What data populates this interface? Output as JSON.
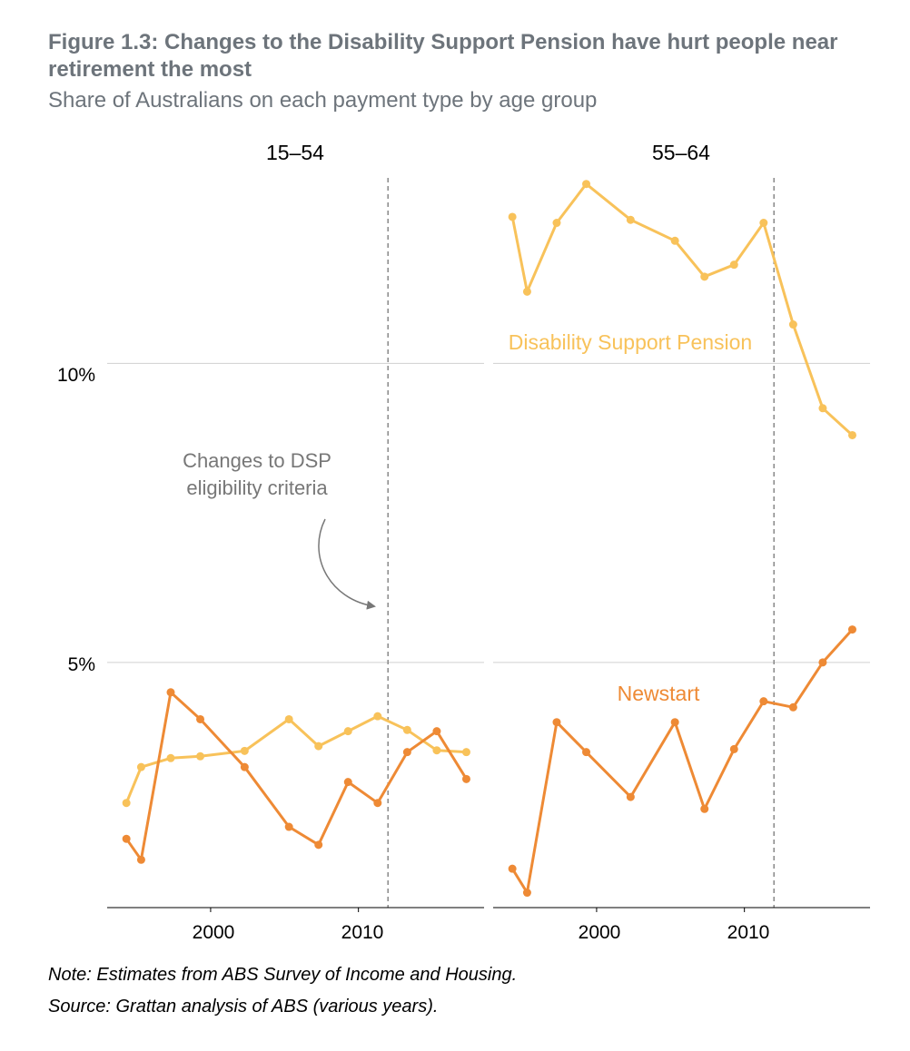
{
  "figure": {
    "title": "Figure 1.3: Changes to the Disability Support Pension have hurt people near retirement the most",
    "subtitle": "Share of Australians on each payment type by age group",
    "note": "Note: Estimates from ABS Survey of Income and Housing.",
    "source": "Source: Grattan analysis of ABS (various years)."
  },
  "colors": {
    "dsp": "#f8c25a",
    "newstart": "#ee8a35",
    "grid": "#d0d0d0",
    "axis": "#000000",
    "vline": "#888888",
    "annotation": "#777777"
  },
  "chart_data": {
    "type": "line",
    "facets": [
      {
        "title": "15–54",
        "series": [
          {
            "name": "Disability Support Pension",
            "x": [
              1994.3,
              1995.3,
              1997.3,
              1999.3,
              2002.3,
              2005.3,
              2007.3,
              2009.3,
              2011.3,
              2013.3,
              2015.3,
              2017.3
            ],
            "values": [
              2.65,
              3.25,
              3.4,
              3.43,
              3.52,
              4.05,
              3.6,
              3.85,
              4.1,
              3.87,
              3.53,
              3.5
            ]
          },
          {
            "name": "Newstart",
            "x": [
              1994.3,
              1995.3,
              1997.3,
              1999.3,
              2002.3,
              2005.3,
              2007.3,
              2009.3,
              2011.3,
              2013.3,
              2015.3,
              2017.3
            ],
            "values": [
              2.05,
              1.7,
              4.5,
              4.05,
              3.25,
              2.25,
              1.95,
              3.0,
              2.65,
              3.5,
              3.85,
              3.05
            ]
          }
        ],
        "vline_year": 2012,
        "annotation": [
          "Changes to DSP",
          "eligibility criteria"
        ]
      },
      {
        "title": "55–64",
        "series": [
          {
            "name": "Disability Support Pension",
            "x": [
              1994.3,
              1995.3,
              1997.3,
              1999.3,
              2002.3,
              2005.3,
              2007.3,
              2009.3,
              2011.3,
              2013.3,
              2015.3,
              2017.3
            ],
            "values": [
              12.45,
              11.2,
              12.35,
              13.0,
              12.4,
              12.05,
              11.45,
              11.65,
              12.35,
              10.65,
              9.25,
              8.8
            ]
          },
          {
            "name": "Newstart",
            "x": [
              1994.3,
              1995.3,
              1997.3,
              1999.3,
              2002.3,
              2005.3,
              2007.3,
              2009.3,
              2011.3,
              2013.3,
              2015.3,
              2017.3
            ],
            "values": [
              1.55,
              1.15,
              4.0,
              3.5,
              2.75,
              4.0,
              2.55,
              3.55,
              4.35,
              4.25,
              5.0,
              5.55
            ]
          }
        ],
        "vline_year": 2012,
        "series_labels": [
          "Disability Support Pension",
          "Newstart"
        ]
      }
    ],
    "x_ticks": [
      2000,
      2010
    ],
    "x_tick_labels": [
      "2000",
      "2010"
    ],
    "y_ticks": [
      5,
      10
    ],
    "y_tick_labels": [
      "5%",
      "10%"
    ],
    "xlim": [
      1993,
      2018.5
    ],
    "ylim": [
      0.9,
      13.8
    ],
    "grid": "horizontal"
  }
}
